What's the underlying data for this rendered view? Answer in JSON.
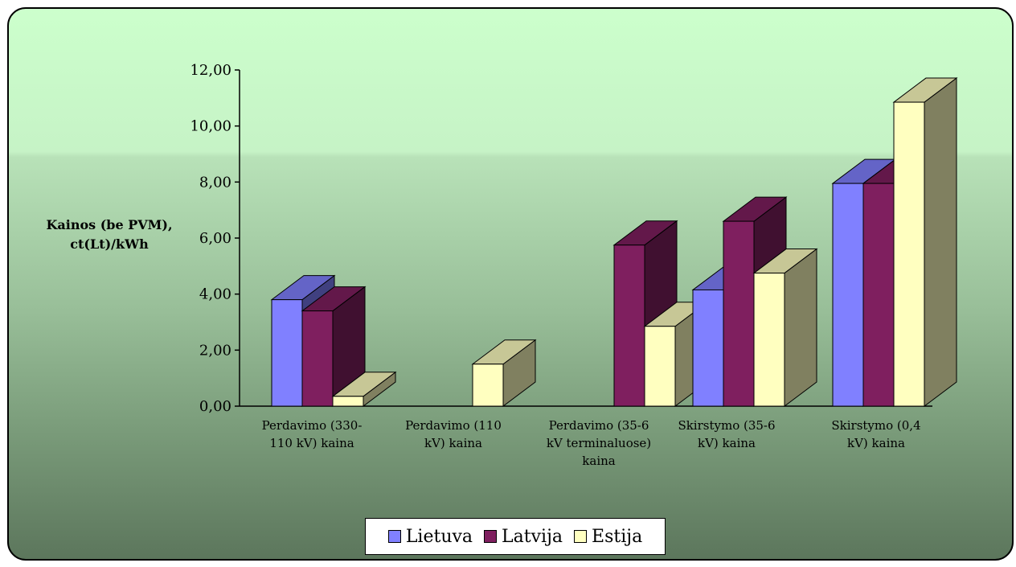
{
  "chart_data": {
    "type": "bar",
    "variant": "3d-clustered-column",
    "ylabel": "Kainos (be PVM),\nct(Lt)/kWh",
    "ylim": [
      0,
      12
    ],
    "ytick_labels": [
      "0,00",
      "2,00",
      "4,00",
      "6,00",
      "8,00",
      "10,00",
      "12,00"
    ],
    "categories": [
      "Perdavimo (330-\n110 kV) kaina",
      "Perdavimo (110\nkV) kaina",
      "Perdavimo (35-6\nkV terminaluose)\nkaina",
      "Skirstymo (35-6\nkV) kaina",
      "Skirstymo (0,4\nkV) kaina"
    ],
    "series": [
      {
        "name": "Lietuva",
        "color": "#8080ff",
        "values": [
          3.8,
          0,
          0,
          4.15,
          7.95
        ]
      },
      {
        "name": "Latvija",
        "color": "#7f1f5f",
        "values": [
          3.4,
          0,
          5.75,
          6.6,
          7.95
        ]
      },
      {
        "name": "Estija",
        "color": "#ffffc0",
        "values": [
          0.35,
          1.5,
          2.85,
          4.75,
          10.85
        ]
      }
    ],
    "legend_position": "bottom",
    "grid": false
  }
}
